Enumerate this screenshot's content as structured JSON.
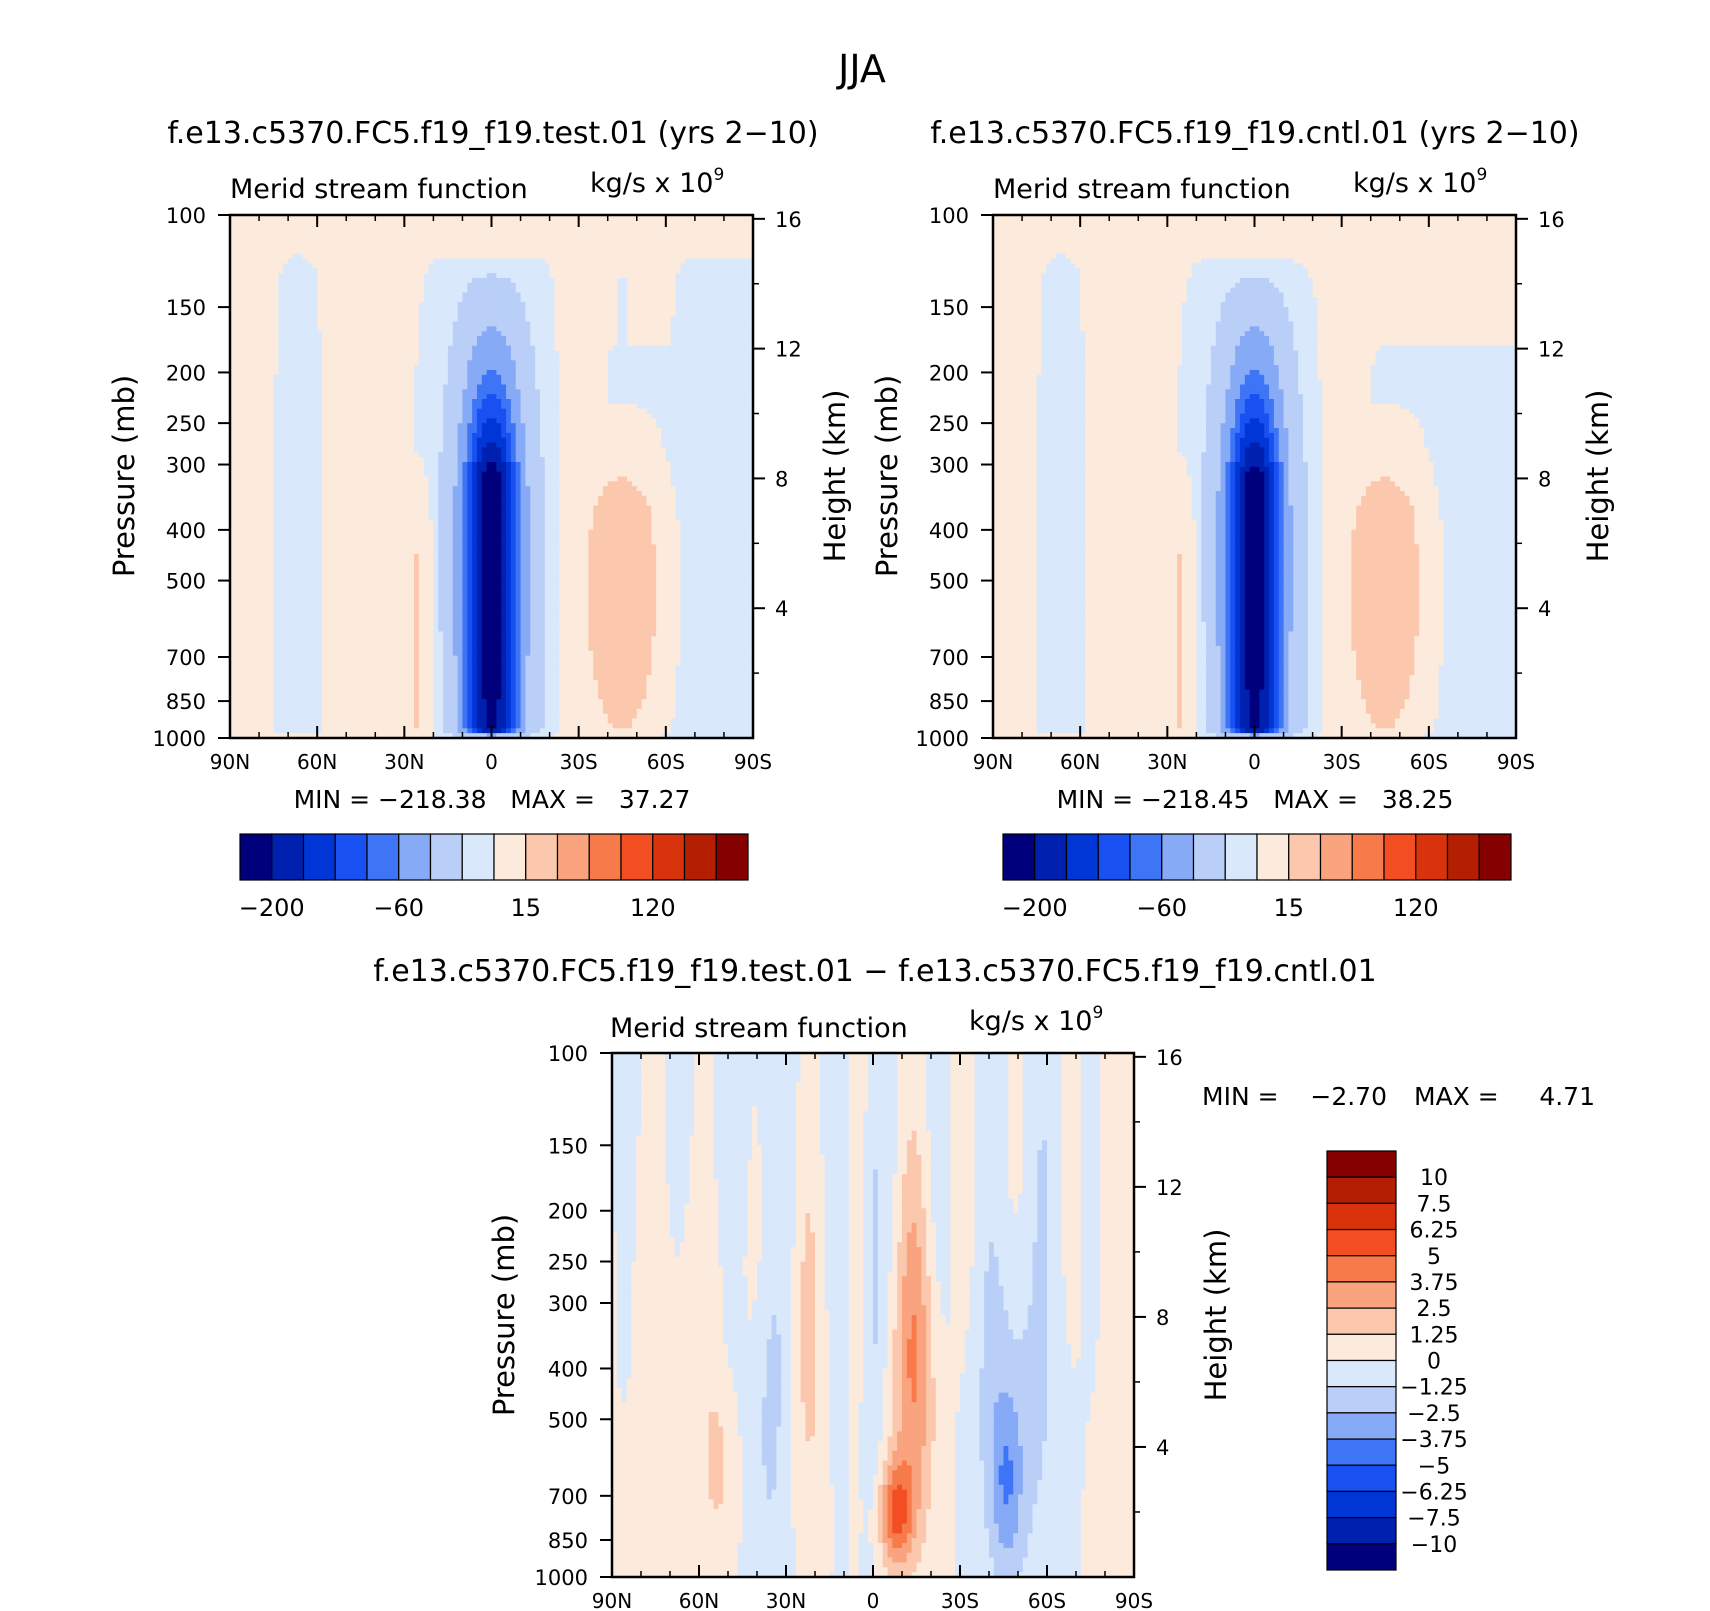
{
  "figure_title": "JJA",
  "colors": {
    "axis": "#000000",
    "palette_abs": [
      "#00007c",
      "#0020b0",
      "#0036d6",
      "#1850f2",
      "#3e74f6",
      "#86aaf5",
      "#b9cff8",
      "#d9e8fb",
      "#fcebdc",
      "#fcc8ad",
      "#f9a47e",
      "#f77a4a",
      "#f24e22",
      "#d8330c",
      "#b41f04",
      "#850000"
    ],
    "palette_diff": [
      "#00007c",
      "#0020b0",
      "#0036d6",
      "#1850f2",
      "#3e74f6",
      "#86aaf5",
      "#b9cff8",
      "#d9e8fb",
      "#fcebdc",
      "#fcc8ad",
      "#f9a47e",
      "#f77a4a",
      "#f24e22",
      "#d8330c",
      "#b41f04",
      "#850000"
    ]
  },
  "panels": [
    {
      "title": "f.e13.c5370.FC5.f19_f19.test.01 (yrs 2−10)",
      "variable": "Merid stream function",
      "units_base": "kg/s x 10",
      "units_exp": "9",
      "ylabel_left": "Pressure (mb)",
      "ylabel_right": "Height (km)",
      "minmax": "MIN = −218.38   MAX =   37.27",
      "colorbar_labels": [
        "−200",
        "−60",
        "15",
        "120"
      ]
    },
    {
      "title": "f.e13.c5370.FC5.f19_f19.cntl.01 (yrs 2−10)",
      "variable": "Merid stream function",
      "units_base": "kg/s x 10",
      "units_exp": "9",
      "ylabel_left": "Pressure (mb)",
      "ylabel_right": "Height (km)",
      "minmax": "MIN = −218.45   MAX =   38.25",
      "colorbar_labels": [
        "−200",
        "−60",
        "15",
        "120"
      ]
    },
    {
      "title": "f.e13.c5370.FC5.f19_f19.test.01 − f.e13.c5370.FC5.f19_f19.cntl.01",
      "variable": "Merid stream function",
      "units_base": "kg/s x 10",
      "units_exp": "9",
      "ylabel_left": "Pressure (mb)",
      "ylabel_right": "Height (km)",
      "min_label": "MIN =",
      "min_value": "−2.70",
      "max_label": "MAX =",
      "max_value": "4.71",
      "colorbar_labels": [
        "10",
        "7.5",
        "6.25",
        "5",
        "3.75",
        "2.5",
        "1.25",
        "0",
        "−1.25",
        "−2.5",
        "−3.75",
        "−5",
        "−6.25",
        "−7.5",
        "−10"
      ]
    }
  ],
  "chart_data": [
    {
      "type": "heatmap",
      "title": "f.e13.c5370.FC5.f19_f19.test.01 (yrs 2−10)",
      "xlabel": "",
      "ylabel": "Pressure (mb)",
      "x_ticks": [
        "90N",
        "60N",
        "30N",
        "0",
        "30S",
        "60S",
        "90S"
      ],
      "y_ticks": [
        100,
        150,
        200,
        250,
        300,
        400,
        500,
        700,
        850,
        1000
      ],
      "y_right_ticks": [
        16,
        12,
        8,
        4
      ],
      "xlim": [
        90,
        -90
      ],
      "ylim": [
        1000,
        100
      ],
      "y_scale": "log",
      "min": -218.38,
      "max": 37.27,
      "levels": [
        -200,
        -60,
        15,
        120
      ],
      "features": [
        {
          "name": "main southern cell",
          "lat": 0,
          "p": 450,
          "value": -218.38
        },
        {
          "name": "southern positive cell",
          "lat": -45,
          "p": 500,
          "value": 37.27
        }
      ]
    },
    {
      "type": "heatmap",
      "title": "f.e13.c5370.FC5.f19_f19.cntl.01 (yrs 2−10)",
      "xlabel": "",
      "ylabel": "Pressure (mb)",
      "x_ticks": [
        "90N",
        "60N",
        "30N",
        "0",
        "30S",
        "60S",
        "90S"
      ],
      "y_ticks": [
        100,
        150,
        200,
        250,
        300,
        400,
        500,
        700,
        850,
        1000
      ],
      "y_right_ticks": [
        16,
        12,
        8,
        4
      ],
      "xlim": [
        90,
        -90
      ],
      "ylim": [
        1000,
        100
      ],
      "y_scale": "log",
      "min": -218.45,
      "max": 38.25,
      "levels": [
        -200,
        -60,
        15,
        120
      ],
      "features": [
        {
          "name": "main southern cell",
          "lat": 0,
          "p": 450,
          "value": -218.45
        },
        {
          "name": "southern positive cell",
          "lat": -45,
          "p": 500,
          "value": 38.25
        }
      ]
    },
    {
      "type": "heatmap",
      "title": "f.e13.c5370.FC5.f19_f19.test.01 − f.e13.c5370.FC5.f19_f19.cntl.01",
      "xlabel": "",
      "ylabel": "Pressure (mb)",
      "x_ticks": [
        "90N",
        "60N",
        "30N",
        "0",
        "30S",
        "60S",
        "90S"
      ],
      "y_ticks": [
        100,
        150,
        200,
        250,
        300,
        400,
        500,
        700,
        850,
        1000
      ],
      "y_right_ticks": [
        16,
        12,
        8,
        4
      ],
      "xlim": [
        90,
        -90
      ],
      "ylim": [
        1000,
        100
      ],
      "y_scale": "log",
      "min": -2.7,
      "max": 4.71,
      "levels": [
        -10,
        -7.5,
        -6.25,
        -5,
        -3.75,
        -2.5,
        -1.25,
        0,
        1.25,
        2.5,
        3.75,
        5,
        6.25,
        7.5,
        10
      ],
      "features": [
        {
          "name": "positive maximum",
          "lat": -8,
          "p": 750,
          "value": 4.71
        },
        {
          "name": "negative minimum",
          "lat": -46,
          "p": 700,
          "value": -2.7
        }
      ]
    }
  ]
}
